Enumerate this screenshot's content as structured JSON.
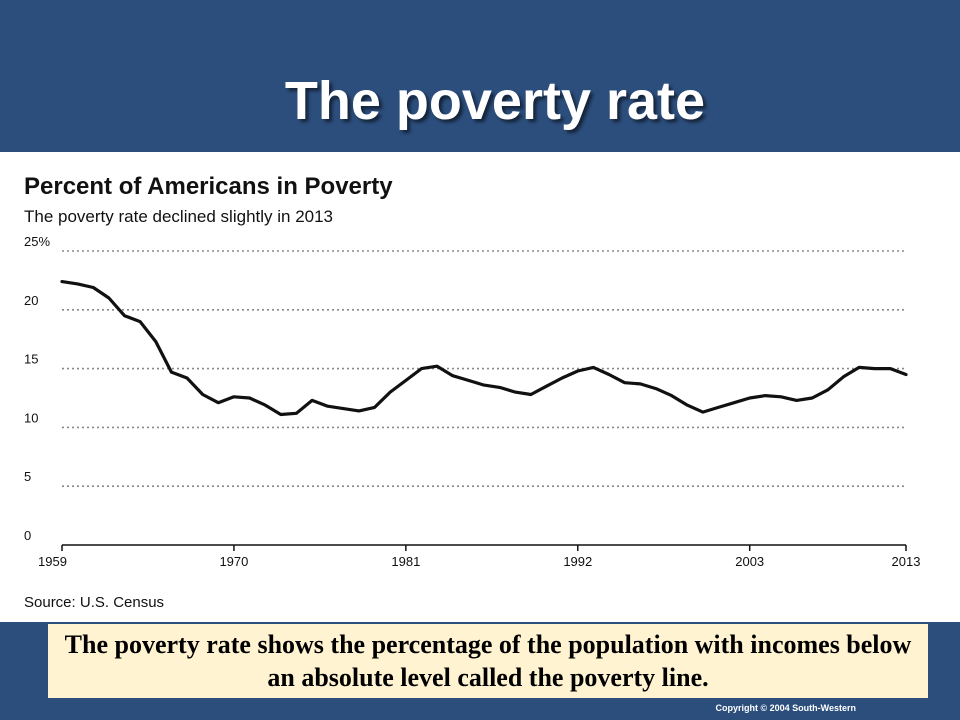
{
  "slide": {
    "title": "The poverty rate",
    "caption": "The poverty rate shows the percentage of the population with incomes below an absolute level called the poverty line.",
    "copyright": "Copyright © 2004  South-Western"
  },
  "chart_data": {
    "type": "line",
    "title": "Percent of Americans in Poverty",
    "subtitle": "The poverty rate declined slightly in 2013",
    "source": "Source: U.S. Census",
    "xlabel": "",
    "ylabel": "",
    "xlim": [
      1959,
      2013
    ],
    "ylim": [
      0,
      25
    ],
    "grid": true,
    "xticks": [
      1959,
      1970,
      1981,
      1992,
      2003,
      2013
    ],
    "yticks": [
      {
        "value": 0,
        "label": "0"
      },
      {
        "value": 5,
        "label": "5"
      },
      {
        "value": 10,
        "label": "10"
      },
      {
        "value": 15,
        "label": "15"
      },
      {
        "value": 20,
        "label": "20"
      },
      {
        "value": 25,
        "label": "25%"
      }
    ],
    "line_color": "#111111",
    "x": [
      1959,
      1960,
      1961,
      1962,
      1963,
      1964,
      1965,
      1966,
      1967,
      1968,
      1969,
      1970,
      1971,
      1972,
      1973,
      1974,
      1975,
      1976,
      1977,
      1978,
      1979,
      1980,
      1981,
      1982,
      1983,
      1984,
      1985,
      1986,
      1987,
      1988,
      1989,
      1990,
      1991,
      1992,
      1993,
      1994,
      1995,
      1996,
      1997,
      1998,
      1999,
      2000,
      2001,
      2002,
      2003,
      2004,
      2005,
      2006,
      2007,
      2008,
      2009,
      2010,
      2011,
      2012,
      2013
    ],
    "values": [
      22.4,
      22.2,
      21.9,
      21.0,
      19.5,
      19.0,
      17.3,
      14.7,
      14.2,
      12.8,
      12.1,
      12.6,
      12.5,
      11.9,
      11.1,
      11.2,
      12.3,
      11.8,
      11.6,
      11.4,
      11.7,
      13.0,
      14.0,
      15.0,
      15.2,
      14.4,
      14.0,
      13.6,
      13.4,
      13.0,
      12.8,
      13.5,
      14.2,
      14.8,
      15.1,
      14.5,
      13.8,
      13.7,
      13.3,
      12.7,
      11.9,
      11.3,
      11.7,
      12.1,
      12.5,
      12.7,
      12.6,
      12.3,
      12.5,
      13.2,
      14.3,
      15.1,
      15.0,
      15.0,
      14.5
    ]
  }
}
